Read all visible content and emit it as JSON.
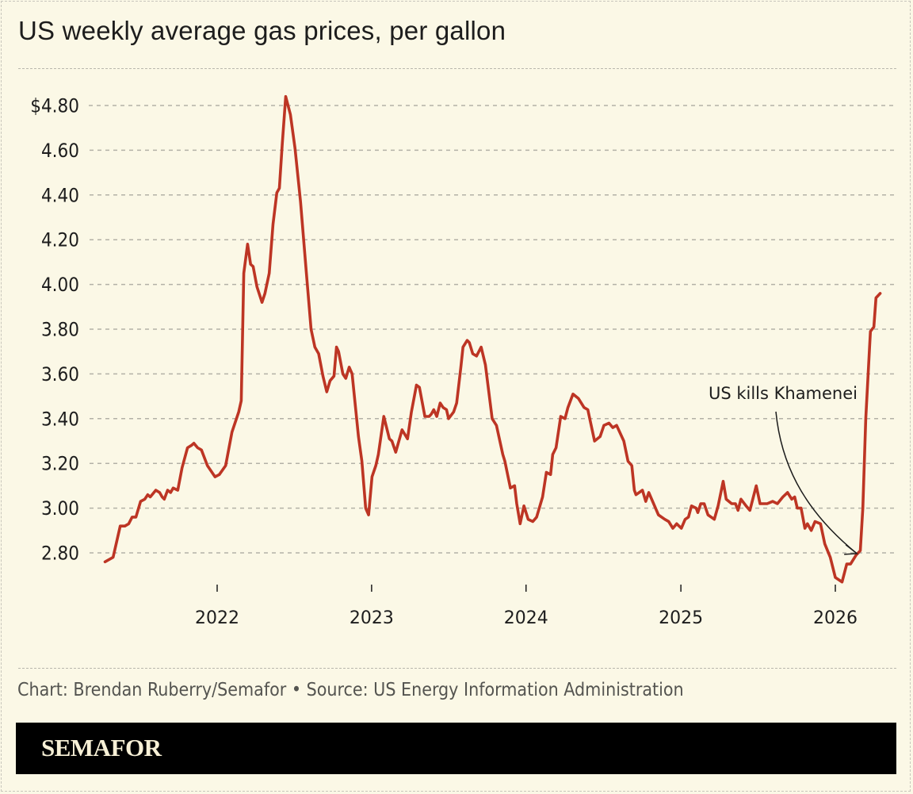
{
  "chart_data": {
    "type": "line",
    "title": "US weekly average gas prices, per gallon",
    "xlabel": "",
    "ylabel": "",
    "ylim": [
      2.68,
      4.86
    ],
    "xlim": [
      "2021-04-01",
      "2026-04-25"
    ],
    "y_ticks": [
      2.8,
      3.0,
      3.2,
      3.4,
      3.6,
      3.8,
      4.0,
      4.2,
      4.4,
      4.6,
      4.8
    ],
    "y_tick_labels": [
      "2.80",
      "3.00",
      "3.20",
      "3.40",
      "3.60",
      "3.80",
      "4.00",
      "4.20",
      "4.40",
      "4.60",
      "$4.80"
    ],
    "x_ticks": [
      "2022-01-01",
      "2023-01-01",
      "2024-01-01",
      "2025-01-01",
      "2026-01-01"
    ],
    "x_tick_labels": [
      "2022",
      "2023",
      "2024",
      "2025",
      "2026"
    ],
    "grid": "horizontal dashed",
    "line_color": "#bd3524",
    "annotations": [
      {
        "text": "US kills Khamenei",
        "date": "2026-02-19",
        "value": 2.79
      }
    ],
    "series": [
      {
        "points": [
          [
            "2021-04-11",
            2.76
          ],
          [
            "2021-04-30",
            2.78
          ],
          [
            "2021-05-17",
            2.92
          ],
          [
            "2021-05-28",
            2.92
          ],
          [
            "2021-06-06",
            2.93
          ],
          [
            "2021-06-14",
            2.96
          ],
          [
            "2021-06-23",
            2.96
          ],
          [
            "2021-07-04",
            3.03
          ],
          [
            "2021-07-14",
            3.04
          ],
          [
            "2021-07-21",
            3.06
          ],
          [
            "2021-07-27",
            3.05
          ],
          [
            "2021-08-09",
            3.08
          ],
          [
            "2021-08-18",
            3.07
          ],
          [
            "2021-08-24",
            3.05
          ],
          [
            "2021-08-29",
            3.04
          ],
          [
            "2021-09-06",
            3.08
          ],
          [
            "2021-09-13",
            3.07
          ],
          [
            "2021-09-19",
            3.09
          ],
          [
            "2021-09-30",
            3.08
          ],
          [
            "2021-10-10",
            3.18
          ],
          [
            "2021-10-23",
            3.27
          ],
          [
            "2021-11-01",
            3.28
          ],
          [
            "2021-11-07",
            3.29
          ],
          [
            "2021-11-16",
            3.27
          ],
          [
            "2021-11-25",
            3.26
          ],
          [
            "2021-12-09",
            3.19
          ],
          [
            "2021-12-27",
            3.14
          ],
          [
            "2022-01-06",
            3.15
          ],
          [
            "2022-01-21",
            3.19
          ],
          [
            "2022-02-05",
            3.34
          ],
          [
            "2022-02-21",
            3.43
          ],
          [
            "2022-02-27",
            3.48
          ],
          [
            "2022-03-05",
            4.05
          ],
          [
            "2022-03-14",
            4.18
          ],
          [
            "2022-03-21",
            4.09
          ],
          [
            "2022-03-27",
            4.08
          ],
          [
            "2022-04-05",
            3.99
          ],
          [
            "2022-04-17",
            3.92
          ],
          [
            "2022-04-24",
            3.96
          ],
          [
            "2022-05-04",
            4.05
          ],
          [
            "2022-05-13",
            4.27
          ],
          [
            "2022-05-22",
            4.41
          ],
          [
            "2022-05-28",
            4.43
          ],
          [
            "2022-06-04",
            4.63
          ],
          [
            "2022-06-12",
            4.84
          ],
          [
            "2022-06-23",
            4.76
          ],
          [
            "2022-07-04",
            4.61
          ],
          [
            "2022-07-17",
            4.37
          ],
          [
            "2022-07-31",
            4.05
          ],
          [
            "2022-08-11",
            3.8
          ],
          [
            "2022-08-20",
            3.72
          ],
          [
            "2022-08-29",
            3.69
          ],
          [
            "2022-09-08",
            3.59
          ],
          [
            "2022-09-17",
            3.52
          ],
          [
            "2022-09-25",
            3.57
          ],
          [
            "2022-10-04",
            3.59
          ],
          [
            "2022-10-10",
            3.72
          ],
          [
            "2022-10-15",
            3.7
          ],
          [
            "2022-10-25",
            3.6
          ],
          [
            "2022-11-01",
            3.58
          ],
          [
            "2022-11-09",
            3.63
          ],
          [
            "2022-11-16",
            3.6
          ],
          [
            "2022-12-01",
            3.32
          ],
          [
            "2022-12-09",
            3.21
          ],
          [
            "2022-12-18",
            3.0
          ],
          [
            "2022-12-25",
            2.97
          ],
          [
            "2023-01-02",
            3.14
          ],
          [
            "2023-01-11",
            3.19
          ],
          [
            "2023-01-17",
            3.24
          ],
          [
            "2023-01-30",
            3.41
          ],
          [
            "2023-02-12",
            3.31
          ],
          [
            "2023-02-18",
            3.3
          ],
          [
            "2023-02-27",
            3.25
          ],
          [
            "2023-03-14",
            3.35
          ],
          [
            "2023-03-27",
            3.31
          ],
          [
            "2023-04-05",
            3.43
          ],
          [
            "2023-04-17",
            3.55
          ],
          [
            "2023-04-24",
            3.54
          ],
          [
            "2023-05-07",
            3.41
          ],
          [
            "2023-05-17",
            3.41
          ],
          [
            "2023-05-22",
            3.42
          ],
          [
            "2023-05-28",
            3.44
          ],
          [
            "2023-06-04",
            3.41
          ],
          [
            "2023-06-12",
            3.47
          ],
          [
            "2023-06-19",
            3.45
          ],
          [
            "2023-06-27",
            3.44
          ],
          [
            "2023-07-02",
            3.4
          ],
          [
            "2023-07-14",
            3.43
          ],
          [
            "2023-07-21",
            3.47
          ],
          [
            "2023-07-31",
            3.63
          ],
          [
            "2023-08-05",
            3.72
          ],
          [
            "2023-08-15",
            3.75
          ],
          [
            "2023-08-20",
            3.74
          ],
          [
            "2023-08-28",
            3.69
          ],
          [
            "2023-09-06",
            3.68
          ],
          [
            "2023-09-17",
            3.72
          ],
          [
            "2023-09-27",
            3.64
          ],
          [
            "2023-10-13",
            3.4
          ],
          [
            "2023-10-23",
            3.37
          ],
          [
            "2023-11-07",
            3.24
          ],
          [
            "2023-11-12",
            3.21
          ],
          [
            "2023-11-25",
            3.09
          ],
          [
            "2023-12-05",
            3.1
          ],
          [
            "2023-12-10",
            3.02
          ],
          [
            "2023-12-18",
            2.93
          ],
          [
            "2023-12-27",
            3.01
          ],
          [
            "2024-01-06",
            2.95
          ],
          [
            "2024-01-17",
            2.94
          ],
          [
            "2024-01-26",
            2.96
          ],
          [
            "2024-02-09",
            3.05
          ],
          [
            "2024-02-18",
            3.16
          ],
          [
            "2024-02-28",
            3.15
          ],
          [
            "2024-03-04",
            3.24
          ],
          [
            "2024-03-12",
            3.27
          ],
          [
            "2024-03-23",
            3.41
          ],
          [
            "2024-04-02",
            3.4
          ],
          [
            "2024-04-09",
            3.45
          ],
          [
            "2024-04-21",
            3.51
          ],
          [
            "2024-05-04",
            3.49
          ],
          [
            "2024-05-17",
            3.45
          ],
          [
            "2024-05-26",
            3.44
          ],
          [
            "2024-06-11",
            3.3
          ],
          [
            "2024-06-24",
            3.32
          ],
          [
            "2024-07-03",
            3.37
          ],
          [
            "2024-07-15",
            3.38
          ],
          [
            "2024-07-24",
            3.36
          ],
          [
            "2024-08-02",
            3.37
          ],
          [
            "2024-08-19",
            3.3
          ],
          [
            "2024-08-29",
            3.21
          ],
          [
            "2024-09-07",
            3.19
          ],
          [
            "2024-09-13",
            3.08
          ],
          [
            "2024-09-17",
            3.06
          ],
          [
            "2024-10-02",
            3.08
          ],
          [
            "2024-10-10",
            3.03
          ],
          [
            "2024-10-17",
            3.07
          ],
          [
            "2024-11-09",
            2.97
          ],
          [
            "2024-11-24",
            2.95
          ],
          [
            "2024-12-03",
            2.94
          ],
          [
            "2024-12-13",
            2.91
          ],
          [
            "2024-12-22",
            2.93
          ],
          [
            "2025-01-02",
            2.91
          ],
          [
            "2025-01-11",
            2.95
          ],
          [
            "2025-01-19",
            2.96
          ],
          [
            "2025-01-26",
            3.01
          ],
          [
            "2025-02-06",
            3.0
          ],
          [
            "2025-02-10",
            2.98
          ],
          [
            "2025-02-17",
            3.02
          ],
          [
            "2025-02-25",
            3.02
          ],
          [
            "2025-03-06",
            2.97
          ],
          [
            "2025-03-21",
            2.95
          ],
          [
            "2025-03-30",
            3.01
          ],
          [
            "2025-04-11",
            3.12
          ],
          [
            "2025-04-18",
            3.04
          ],
          [
            "2025-05-01",
            3.02
          ],
          [
            "2025-05-10",
            3.02
          ],
          [
            "2025-05-16",
            2.99
          ],
          [
            "2025-05-23",
            3.04
          ],
          [
            "2025-06-04",
            3.01
          ],
          [
            "2025-06-13",
            2.99
          ],
          [
            "2025-06-28",
            3.1
          ],
          [
            "2025-07-07",
            3.02
          ],
          [
            "2025-07-24",
            3.02
          ],
          [
            "2025-08-06",
            3.03
          ],
          [
            "2025-08-17",
            3.02
          ],
          [
            "2025-08-30",
            3.05
          ],
          [
            "2025-09-10",
            3.07
          ],
          [
            "2025-09-20",
            3.04
          ],
          [
            "2025-09-27",
            3.05
          ],
          [
            "2025-10-03",
            3.0
          ],
          [
            "2025-10-12",
            3.0
          ],
          [
            "2025-10-21",
            2.91
          ],
          [
            "2025-10-27",
            2.93
          ],
          [
            "2025-11-05",
            2.9
          ],
          [
            "2025-11-14",
            2.94
          ],
          [
            "2025-11-27",
            2.93
          ],
          [
            "2025-12-07",
            2.84
          ],
          [
            "2025-12-20",
            2.78
          ],
          [
            "2026-01-01",
            2.69
          ],
          [
            "2026-01-17",
            2.67
          ],
          [
            "2026-01-28",
            2.75
          ],
          [
            "2026-02-06",
            2.75
          ],
          [
            "2026-02-19",
            2.79
          ],
          [
            "2026-03-01",
            2.81
          ],
          [
            "2026-03-07",
            3.0
          ],
          [
            "2026-03-14",
            3.4
          ],
          [
            "2026-03-23",
            3.72
          ],
          [
            "2026-03-25",
            3.79
          ],
          [
            "2026-04-02",
            3.81
          ],
          [
            "2026-04-07",
            3.94
          ],
          [
            "2026-04-17",
            3.96
          ]
        ]
      }
    ]
  },
  "footer": {
    "source": "Chart: Brendan Ruberry/Semafor • Source: US Energy Information Administration",
    "brand": "SEMAFOR"
  }
}
